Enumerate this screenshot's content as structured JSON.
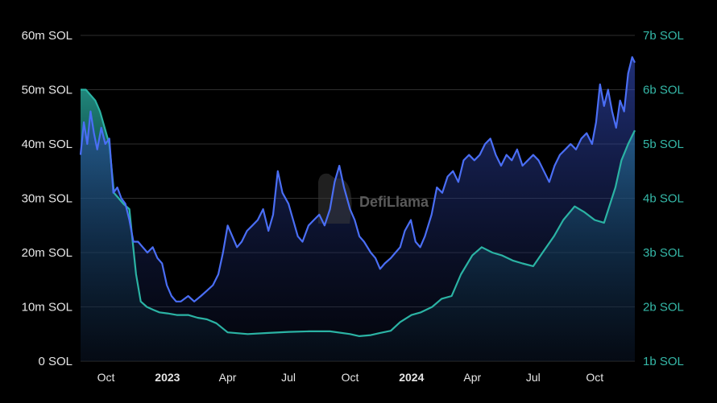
{
  "chart_data": {
    "type": "line",
    "watermark": "DefiLlama",
    "colors": {
      "left": "#4a6ef5",
      "right": "#2bb3a4",
      "grid": "#2e2e2e",
      "right_tick": "#35b8a8"
    },
    "y_left": {
      "ylim": [
        0,
        60
      ],
      "ticks": [
        {
          "v": 0,
          "label": "0 SOL"
        },
        {
          "v": 10,
          "label": "10m SOL"
        },
        {
          "v": 20,
          "label": "20m SOL"
        },
        {
          "v": 30,
          "label": "30m SOL"
        },
        {
          "v": 40,
          "label": "40m SOL"
        },
        {
          "v": 50,
          "label": "50m SOL"
        },
        {
          "v": 60,
          "label": "60m SOL"
        }
      ]
    },
    "y_right": {
      "ylim": [
        1,
        7
      ],
      "ticks": [
        {
          "v": 1,
          "label": "1b SOL"
        },
        {
          "v": 2,
          "label": "2b SOL"
        },
        {
          "v": 3,
          "label": "3b SOL"
        },
        {
          "v": 4,
          "label": "4b SOL"
        },
        {
          "v": 5,
          "label": "5b SOL"
        },
        {
          "v": 6,
          "label": "6b SOL"
        },
        {
          "v": 7,
          "label": "7b SOL"
        }
      ]
    },
    "x_range": [
      "2022-08-24",
      "2024-11-30"
    ],
    "x_ticks": [
      {
        "date": "2022-10-01",
        "label": "Oct",
        "bold": false
      },
      {
        "date": "2023-01-01",
        "label": "2023",
        "bold": true
      },
      {
        "date": "2023-04-01",
        "label": "Apr",
        "bold": false
      },
      {
        "date": "2023-07-01",
        "label": "Jul",
        "bold": false
      },
      {
        "date": "2023-10-01",
        "label": "Oct",
        "bold": false
      },
      {
        "date": "2024-01-01",
        "label": "2024",
        "bold": true
      },
      {
        "date": "2024-04-01",
        "label": "Apr",
        "bold": false
      },
      {
        "date": "2024-07-01",
        "label": "Jul",
        "bold": false
      },
      {
        "date": "2024-10-01",
        "label": "Oct",
        "bold": false
      }
    ],
    "series": [
      {
        "axis": "left",
        "values": [
          [
            "2022-08-24",
            38
          ],
          [
            "2022-08-29",
            44
          ],
          [
            "2022-09-03",
            40
          ],
          [
            "2022-09-08",
            46
          ],
          [
            "2022-09-13",
            42
          ],
          [
            "2022-09-18",
            39
          ],
          [
            "2022-09-24",
            43
          ],
          [
            "2022-09-30",
            40
          ],
          [
            "2022-10-06",
            41
          ],
          [
            "2022-10-12",
            31
          ],
          [
            "2022-10-18",
            32
          ],
          [
            "2022-10-24",
            30
          ],
          [
            "2022-10-30",
            29
          ],
          [
            "2022-11-05",
            26
          ],
          [
            "2022-11-11",
            22
          ],
          [
            "2022-11-18",
            22
          ],
          [
            "2022-11-25",
            21
          ],
          [
            "2022-12-02",
            20
          ],
          [
            "2022-12-10",
            21
          ],
          [
            "2022-12-17",
            19
          ],
          [
            "2022-12-24",
            18
          ],
          [
            "2022-12-31",
            14
          ],
          [
            "2023-01-07",
            12
          ],
          [
            "2023-01-14",
            11
          ],
          [
            "2023-01-21",
            11
          ],
          [
            "2023-02-01",
            12
          ],
          [
            "2023-02-10",
            11
          ],
          [
            "2023-02-20",
            12
          ],
          [
            "2023-03-01",
            13
          ],
          [
            "2023-03-10",
            14
          ],
          [
            "2023-03-18",
            16
          ],
          [
            "2023-03-25",
            20
          ],
          [
            "2023-04-01",
            25
          ],
          [
            "2023-04-08",
            23
          ],
          [
            "2023-04-15",
            21
          ],
          [
            "2023-04-22",
            22
          ],
          [
            "2023-04-30",
            24
          ],
          [
            "2023-05-08",
            25
          ],
          [
            "2023-05-16",
            26
          ],
          [
            "2023-05-24",
            28
          ],
          [
            "2023-06-01",
            24
          ],
          [
            "2023-06-08",
            27
          ],
          [
            "2023-06-15",
            35
          ],
          [
            "2023-06-22",
            31
          ],
          [
            "2023-07-01",
            29
          ],
          [
            "2023-07-08",
            26
          ],
          [
            "2023-07-15",
            23
          ],
          [
            "2023-07-22",
            22
          ],
          [
            "2023-07-31",
            25
          ],
          [
            "2023-08-08",
            26
          ],
          [
            "2023-08-16",
            27
          ],
          [
            "2023-08-24",
            25
          ],
          [
            "2023-09-01",
            28
          ],
          [
            "2023-09-08",
            33
          ],
          [
            "2023-09-15",
            36
          ],
          [
            "2023-09-22",
            32
          ],
          [
            "2023-10-01",
            28
          ],
          [
            "2023-10-08",
            26
          ],
          [
            "2023-10-15",
            23
          ],
          [
            "2023-10-22",
            22
          ],
          [
            "2023-11-01",
            20
          ],
          [
            "2023-11-08",
            19
          ],
          [
            "2023-11-15",
            17
          ],
          [
            "2023-11-22",
            18
          ],
          [
            "2023-12-01",
            19
          ],
          [
            "2023-12-08",
            20
          ],
          [
            "2023-12-15",
            21
          ],
          [
            "2023-12-22",
            24
          ],
          [
            "2023-12-31",
            26
          ],
          [
            "2024-01-07",
            22
          ],
          [
            "2024-01-14",
            21
          ],
          [
            "2024-01-21",
            23
          ],
          [
            "2024-01-31",
            27
          ],
          [
            "2024-02-08",
            32
          ],
          [
            "2024-02-16",
            31
          ],
          [
            "2024-02-24",
            34
          ],
          [
            "2024-03-03",
            35
          ],
          [
            "2024-03-11",
            33
          ],
          [
            "2024-03-19",
            37
          ],
          [
            "2024-03-27",
            38
          ],
          [
            "2024-04-04",
            37
          ],
          [
            "2024-04-12",
            38
          ],
          [
            "2024-04-20",
            40
          ],
          [
            "2024-04-28",
            41
          ],
          [
            "2024-05-06",
            38
          ],
          [
            "2024-05-14",
            36
          ],
          [
            "2024-05-22",
            38
          ],
          [
            "2024-05-30",
            37
          ],
          [
            "2024-06-07",
            39
          ],
          [
            "2024-06-15",
            36
          ],
          [
            "2024-06-23",
            37
          ],
          [
            "2024-07-01",
            38
          ],
          [
            "2024-07-09",
            37
          ],
          [
            "2024-07-17",
            35
          ],
          [
            "2024-07-25",
            33
          ],
          [
            "2024-08-02",
            36
          ],
          [
            "2024-08-10",
            38
          ],
          [
            "2024-08-18",
            39
          ],
          [
            "2024-08-26",
            40
          ],
          [
            "2024-09-03",
            39
          ],
          [
            "2024-09-11",
            41
          ],
          [
            "2024-09-19",
            42
          ],
          [
            "2024-09-27",
            40
          ],
          [
            "2024-10-03",
            44
          ],
          [
            "2024-10-09",
            51
          ],
          [
            "2024-10-15",
            47
          ],
          [
            "2024-10-21",
            50
          ],
          [
            "2024-10-27",
            46
          ],
          [
            "2024-11-02",
            43
          ],
          [
            "2024-11-08",
            48
          ],
          [
            "2024-11-14",
            46
          ],
          [
            "2024-11-20",
            53
          ],
          [
            "2024-11-26",
            56
          ],
          [
            "2024-11-30",
            55
          ]
        ]
      },
      {
        "axis": "right",
        "values": [
          [
            "2022-08-24",
            6.0
          ],
          [
            "2022-09-01",
            6.0
          ],
          [
            "2022-09-08",
            5.9
          ],
          [
            "2022-09-15",
            5.8
          ],
          [
            "2022-09-22",
            5.6
          ],
          [
            "2022-09-29",
            5.3
          ],
          [
            "2022-10-06",
            5.0
          ],
          [
            "2022-10-13",
            4.1
          ],
          [
            "2022-10-20",
            4.0
          ],
          [
            "2022-10-27",
            3.9
          ],
          [
            "2022-11-05",
            3.8
          ],
          [
            "2022-11-10",
            3.2
          ],
          [
            "2022-11-15",
            2.6
          ],
          [
            "2022-11-22",
            2.1
          ],
          [
            "2022-12-01",
            2.0
          ],
          [
            "2022-12-10",
            1.95
          ],
          [
            "2022-12-20",
            1.9
          ],
          [
            "2023-01-01",
            1.88
          ],
          [
            "2023-01-15",
            1.85
          ],
          [
            "2023-02-01",
            1.85
          ],
          [
            "2023-02-15",
            1.8
          ],
          [
            "2023-03-01",
            1.77
          ],
          [
            "2023-03-15",
            1.7
          ],
          [
            "2023-04-01",
            1.53
          ],
          [
            "2023-05-01",
            1.5
          ],
          [
            "2023-06-01",
            1.52
          ],
          [
            "2023-07-01",
            1.54
          ],
          [
            "2023-08-01",
            1.55
          ],
          [
            "2023-09-01",
            1.55
          ],
          [
            "2023-10-01",
            1.5
          ],
          [
            "2023-10-15",
            1.46
          ],
          [
            "2023-11-01",
            1.48
          ],
          [
            "2023-11-15",
            1.52
          ],
          [
            "2023-12-01",
            1.56
          ],
          [
            "2023-12-15",
            1.72
          ],
          [
            "2024-01-01",
            1.85
          ],
          [
            "2024-01-15",
            1.9
          ],
          [
            "2024-02-01",
            2.0
          ],
          [
            "2024-02-15",
            2.15
          ],
          [
            "2024-03-01",
            2.2
          ],
          [
            "2024-03-15",
            2.6
          ],
          [
            "2024-04-01",
            2.95
          ],
          [
            "2024-04-15",
            3.1
          ],
          [
            "2024-05-01",
            3.0
          ],
          [
            "2024-05-15",
            2.95
          ],
          [
            "2024-06-01",
            2.85
          ],
          [
            "2024-06-15",
            2.8
          ],
          [
            "2024-07-01",
            2.75
          ],
          [
            "2024-07-15",
            3.0
          ],
          [
            "2024-08-01",
            3.3
          ],
          [
            "2024-08-15",
            3.6
          ],
          [
            "2024-09-01",
            3.85
          ],
          [
            "2024-09-15",
            3.75
          ],
          [
            "2024-10-01",
            3.6
          ],
          [
            "2024-10-15",
            3.55
          ],
          [
            "2024-11-01",
            4.2
          ],
          [
            "2024-11-10",
            4.7
          ],
          [
            "2024-11-20",
            5.0
          ],
          [
            "2024-11-30",
            5.25
          ]
        ]
      }
    ]
  }
}
